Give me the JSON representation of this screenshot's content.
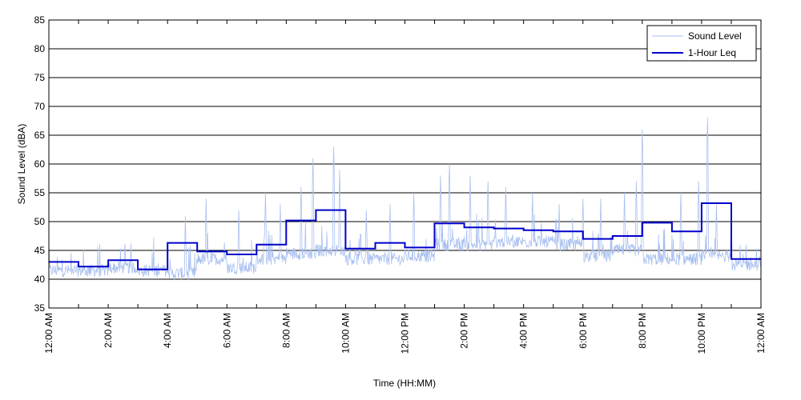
{
  "chart_data": {
    "type": "line",
    "title": "",
    "xlabel": "Time (HH:MM)",
    "ylabel": "Sound Level (dBA)",
    "ylim": [
      35,
      85
    ],
    "yticks": [
      35,
      40,
      45,
      50,
      55,
      60,
      65,
      70,
      75,
      80,
      85
    ],
    "xlim": [
      0,
      24
    ],
    "xticks": [
      0,
      2,
      4,
      6,
      8,
      10,
      12,
      14,
      16,
      18,
      20,
      22,
      24
    ],
    "xticklabels": [
      "12:00 AM",
      "2:00 AM",
      "4:00 AM",
      "6:00 AM",
      "8:00 AM",
      "10:00 AM",
      "12:00 PM",
      "2:00 PM",
      "4:00 PM",
      "6:00 PM",
      "8:00 PM",
      "10:00 PM",
      "12:00 AM"
    ],
    "grid": "horizontal",
    "legend_position": "top-right",
    "series": [
      {
        "name": "Sound Level",
        "color": "#a8bff0",
        "style": "thin",
        "hourly_base": [
          41.5,
          41.5,
          42.0,
          41.5,
          41.0,
          43.5,
          42.0,
          43.5,
          44.5,
          45.0,
          43.5,
          43.5,
          44.0,
          46.0,
          46.0,
          46.5,
          46.5,
          46.0,
          44.0,
          45.0,
          43.5,
          43.5,
          44.0,
          42.5
        ],
        "peaks": [
          [
            4.6,
            51
          ],
          [
            5.3,
            54
          ],
          [
            6.4,
            52
          ],
          [
            7.3,
            55
          ],
          [
            7.8,
            53
          ],
          [
            8.5,
            56
          ],
          [
            8.9,
            61
          ],
          [
            9.6,
            63
          ],
          [
            9.8,
            59
          ],
          [
            10.7,
            52
          ],
          [
            11.5,
            53
          ],
          [
            12.3,
            55
          ],
          [
            13.2,
            58
          ],
          [
            13.5,
            60
          ],
          [
            14.2,
            58
          ],
          [
            14.8,
            57
          ],
          [
            15.4,
            56
          ],
          [
            16.3,
            55
          ],
          [
            17.2,
            53
          ],
          [
            18.0,
            54
          ],
          [
            18.6,
            54
          ],
          [
            19.4,
            55
          ],
          [
            19.8,
            57
          ],
          [
            20.0,
            66
          ],
          [
            21.3,
            55
          ],
          [
            21.9,
            57
          ],
          [
            22.2,
            68
          ],
          [
            22.5,
            53
          ],
          [
            23.0,
            51
          ],
          [
            23.5,
            46
          ]
        ]
      },
      {
        "name": "1-Hour Leq",
        "color": "#0000cc",
        "style": "step",
        "values": [
          43.0,
          42.2,
          43.3,
          41.7,
          46.3,
          44.8,
          44.3,
          46.0,
          50.2,
          52.0,
          45.3,
          46.3,
          45.5,
          49.7,
          49.0,
          48.8,
          48.5,
          48.3,
          47.0,
          47.5,
          49.8,
          48.3,
          53.2,
          43.5
        ]
      }
    ]
  }
}
